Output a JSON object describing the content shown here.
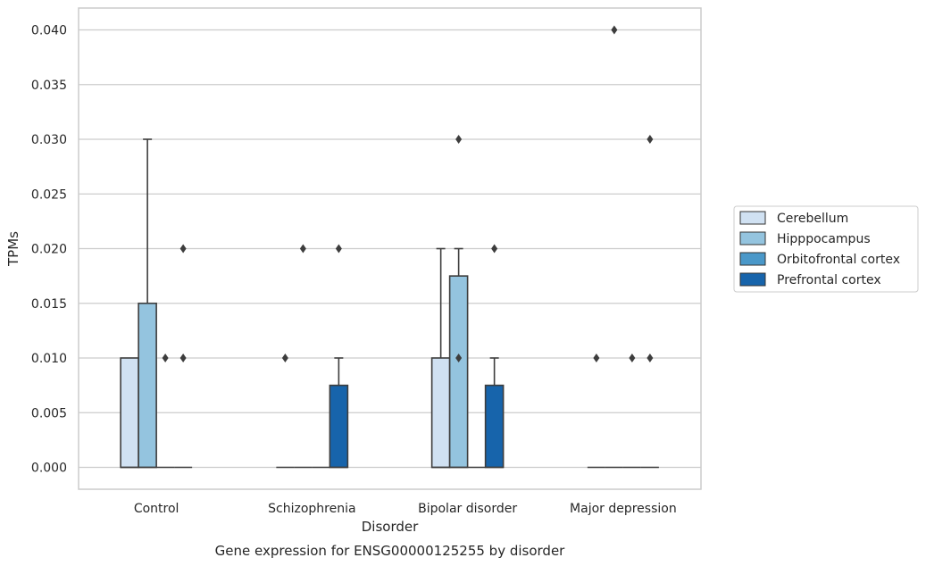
{
  "chart_data": {
    "type": "box",
    "caption": "Gene expression for ENSG00000125255 by disorder",
    "xlabel": "Disorder",
    "ylabel": "TPMs",
    "ylim": [
      -0.002,
      0.042
    ],
    "yticks": [
      "0.000",
      "0.005",
      "0.010",
      "0.015",
      "0.020",
      "0.025",
      "0.030",
      "0.035",
      "0.040"
    ],
    "ytick_values": [
      0,
      0.005,
      0.01,
      0.015,
      0.02,
      0.025,
      0.03,
      0.035,
      0.04
    ],
    "grid": "horizontal",
    "legend_placement": "right",
    "categories": [
      "Control",
      "Schizophrenia",
      "Bipolar disorder",
      "Major depression"
    ],
    "series": [
      {
        "name": "Cerebellum",
        "color": "#d0e1f2",
        "boxes": [
          {
            "q1": 0,
            "q3": 0.01,
            "median": 0,
            "whisker_low": 0,
            "whisker_high": 0.01,
            "outliers": []
          },
          {
            "q1": 0,
            "q3": 0,
            "median": 0,
            "whisker_low": 0,
            "whisker_high": 0,
            "outliers": [
              0.01
            ]
          },
          {
            "q1": 0,
            "q3": 0.01,
            "median": 0,
            "whisker_low": 0,
            "whisker_high": 0.02,
            "outliers": []
          },
          {
            "q1": 0,
            "q3": 0,
            "median": 0,
            "whisker_low": 0,
            "whisker_high": 0,
            "outliers": [
              0.01
            ]
          }
        ]
      },
      {
        "name": "Hipppocampus",
        "color": "#94c4df",
        "boxes": [
          {
            "q1": 0,
            "q3": 0.015,
            "median": 0,
            "whisker_low": 0,
            "whisker_high": 0.03,
            "outliers": []
          },
          {
            "q1": 0,
            "q3": 0,
            "median": 0,
            "whisker_low": 0,
            "whisker_high": 0,
            "outliers": [
              0.02
            ]
          },
          {
            "q1": 0,
            "q3": 0.0175,
            "median": 0,
            "whisker_low": 0,
            "whisker_high": 0.02,
            "outliers": [
              0.03,
              0.01
            ]
          },
          {
            "q1": 0,
            "q3": 0,
            "median": 0,
            "whisker_low": 0,
            "whisker_high": 0,
            "outliers": [
              0.04
            ]
          }
        ]
      },
      {
        "name": "Orbitofrontal cortex",
        "color": "#4a98c9",
        "boxes": [
          {
            "q1": 0,
            "q3": 0,
            "median": 0,
            "whisker_low": 0,
            "whisker_high": 0,
            "outliers": [
              0.01
            ]
          },
          {
            "q1": 0,
            "q3": 0,
            "median": 0,
            "whisker_low": 0,
            "whisker_high": 0,
            "outliers": []
          },
          {
            "q1": 0,
            "q3": 0,
            "median": 0,
            "whisker_low": 0,
            "whisker_high": 0,
            "outliers": []
          },
          {
            "q1": 0,
            "q3": 0,
            "median": 0,
            "whisker_low": 0,
            "whisker_high": 0,
            "outliers": [
              0.01
            ]
          }
        ]
      },
      {
        "name": "Prefrontal cortex",
        "color": "#1764ab",
        "boxes": [
          {
            "q1": 0,
            "q3": 0,
            "median": 0,
            "whisker_low": 0,
            "whisker_high": 0,
            "outliers": [
              0.02,
              0.01
            ]
          },
          {
            "q1": 0,
            "q3": 0.0075,
            "median": 0,
            "whisker_low": 0,
            "whisker_high": 0.01,
            "outliers": [
              0.02
            ]
          },
          {
            "q1": 0,
            "q3": 0.0075,
            "median": 0,
            "whisker_low": 0,
            "whisker_high": 0.01,
            "outliers": [
              0.02
            ]
          },
          {
            "q1": 0,
            "q3": 0,
            "median": 0,
            "whisker_low": 0,
            "whisker_high": 0,
            "outliers": [
              0.03,
              0.01
            ]
          }
        ]
      }
    ]
  }
}
